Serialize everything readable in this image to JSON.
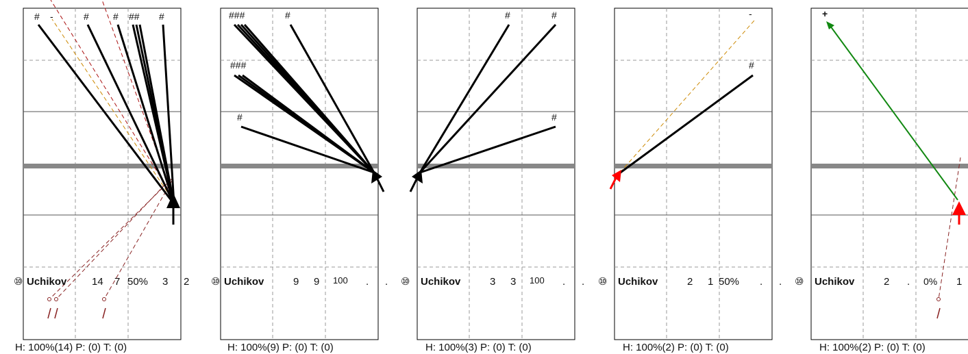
{
  "colors": {
    "frame": "#000000",
    "grid_dash": "#999999",
    "band": "#888888",
    "solid": "#000000",
    "dash_red": "#aa1111",
    "dash_orange": "#cc8800",
    "dash_brown": "#882222",
    "arrow_red": "#ff0000",
    "arrow_green": "#118811"
  },
  "panels": [
    {
      "circle_digit": "⑩",
      "name": "Uchikov",
      "stat1": "14",
      "stat2": "7",
      "stat3": "50%",
      "stat4": "3",
      "stat5": "2",
      "footer": "H: 100%(14)  P: (0)  T: (0)",
      "top_labels": [
        "#",
        "-",
        "#",
        "#",
        "##",
        "#"
      ],
      "mid_labels": [],
      "low_labels": []
    },
    {
      "circle_digit": "⑩",
      "name": "Uchikov",
      "stat1": "9",
      "stat2": "9",
      "stat3": "100",
      "stat4": ".",
      "stat5": ".",
      "footer": "H: 100%(9)  P: (0)  T: (0)",
      "top_labels": [
        "###",
        "#"
      ],
      "mid_labels": [
        "###"
      ],
      "low_labels": [
        "#"
      ]
    },
    {
      "circle_digit": "⑩",
      "name": "Uchikov",
      "stat1": "3",
      "stat2": "3",
      "stat3": "100",
      "stat4": ".",
      "stat5": ".",
      "footer": "H: 100%(3)  P: (0)  T: (0)",
      "top_labels": [
        "#",
        "#"
      ],
      "mid_labels": [],
      "low_labels": [
        "#"
      ]
    },
    {
      "circle_digit": "⑩",
      "name": "Uchikov",
      "stat1": "2",
      "stat2": "1",
      "stat3": "50%",
      "stat4": ".",
      "stat5": ".",
      "footer": "H: 100%(2)  P: (0)  T: (0)",
      "top_labels": [
        "-"
      ],
      "mid_labels": [
        "#"
      ],
      "low_labels": []
    },
    {
      "circle_digit": "⑩",
      "name": "Uchikov",
      "stat1": "2",
      "stat2": ".",
      "stat3": "0%",
      "stat4": "1",
      "stat5": "",
      "footer": "H: 100%(2)  P: (0)  T: (0)",
      "top_labels": [
        "+"
      ],
      "mid_labels": [],
      "low_labels": []
    }
  ]
}
